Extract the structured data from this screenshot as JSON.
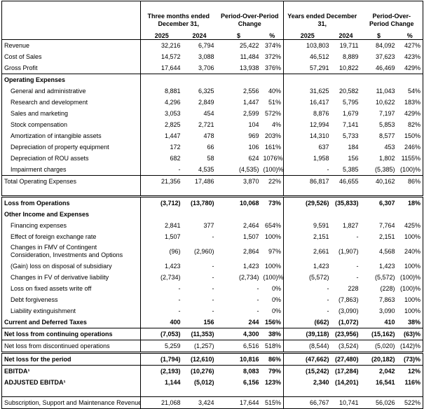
{
  "header": {
    "groups": [
      "Three months ended December 31,",
      "Period-Over-Period Change",
      "Years ended December 31,",
      "Period-Over-Period Change"
    ],
    "columns": [
      "2025",
      "2024",
      "$",
      "%",
      "2025",
      "2024",
      "$",
      "%"
    ]
  },
  "table": {
    "rows": [
      {
        "label": "Revenue",
        "cells": [
          "32,216",
          "6,794",
          "25,422",
          "374%",
          "103,803",
          "19,711",
          "84,092",
          "427%"
        ]
      },
      {
        "label": "Cost of Sales",
        "cells": [
          "14,572",
          "3,088",
          "11,484",
          "372%",
          "46,512",
          "8,889",
          "37,623",
          "423%"
        ]
      },
      {
        "label": "Gross Profit",
        "cells": [
          "17,644",
          "3,706",
          "13,938",
          "376%",
          "57,291",
          "10,822",
          "46,469",
          "429%"
        ]
      },
      {
        "label": "Operating Expenses"
      },
      {
        "label": "General and administrative",
        "cells": [
          "8,881",
          "6,325",
          "2,556",
          "40%",
          "31,625",
          "20,582",
          "11,043",
          "54%"
        ]
      },
      {
        "label": "Research and development",
        "cells": [
          "4,296",
          "2,849",
          "1,447",
          "51%",
          "16,417",
          "5,795",
          "10,622",
          "183%"
        ]
      },
      {
        "label": "Sales and marketing",
        "cells": [
          "3,053",
          "454",
          "2,599",
          "572%",
          "8,876",
          "1,679",
          "7,197",
          "429%"
        ]
      },
      {
        "label": "Stock compensation",
        "cells": [
          "2,825",
          "2,721",
          "104",
          "4%",
          "12,994",
          "7,141",
          "5,853",
          "82%"
        ]
      },
      {
        "label": "Amortization of intangible assets",
        "cells": [
          "1,447",
          "478",
          "969",
          "203%",
          "14,310",
          "5,733",
          "8,577",
          "150%"
        ]
      },
      {
        "label": "Depreciation of property equipment",
        "cells": [
          "172",
          "66",
          "106",
          "161%",
          "637",
          "184",
          "453",
          "246%"
        ]
      },
      {
        "label": "Depreciation of ROU assets",
        "cells": [
          "682",
          "58",
          "624",
          "1076%",
          "1,958",
          "156",
          "1,802",
          "1155%"
        ]
      },
      {
        "label": "Impairment charges",
        "cells": [
          "-",
          "4,535",
          "(4,535)",
          "(100)%",
          "-",
          "5,385",
          "(5,385)",
          "(100)%"
        ]
      },
      {
        "label": "Total Operating Expenses",
        "cells": [
          "21,356",
          "17,486",
          "3,870",
          "22%",
          "86,817",
          "46,655",
          "40,162",
          "86%"
        ]
      },
      {
        "label": "Loss from Operations",
        "cells": [
          "(3,712)",
          "(13,780)",
          "10,068",
          "73%",
          "(29,526)",
          "(35,833)",
          "6,307",
          "18%"
        ]
      },
      {
        "label": "Other Income and Expenses"
      },
      {
        "label": "Financing expenses",
        "cells": [
          "2,841",
          "377",
          "2,464",
          "654%",
          "9,591",
          "1,827",
          "7,764",
          "425%"
        ]
      },
      {
        "label": "Effect of foreign exchange rate",
        "cells": [
          "1,507",
          "-",
          "1,507",
          "100%",
          "2,151",
          "-",
          "2,151",
          "100%"
        ]
      },
      {
        "label": "Changes in FMV of Contingent Consideration, Investments and Options",
        "cells": [
          "(96)",
          "(2,960)",
          "2,864",
          "97%",
          "2,661",
          "(1,907)",
          "4,568",
          "240%"
        ]
      },
      {
        "label": "(Gain) loss on disposal of subsidiary",
        "cells": [
          "1,423",
          "-",
          "1,423",
          "100%",
          "1,423",
          "-",
          "1,423",
          "100%"
        ]
      },
      {
        "label": "Changes in FV of derivative liability",
        "cells": [
          "(2,734)",
          "-",
          "(2,734)",
          "(100)%",
          "(5,572)",
          "-",
          "(5,572)",
          "(100)%"
        ]
      },
      {
        "label": "Loss on fixed assets write off",
        "cells": [
          "-",
          "-",
          "-",
          "0%",
          "-",
          "228",
          "(228)",
          "(100)%"
        ]
      },
      {
        "label": "Debt forgiveness",
        "cells": [
          "-",
          "-",
          "-",
          "0%",
          "-",
          "(7,863)",
          "7,863",
          "100%"
        ]
      },
      {
        "label": "Liability extinguishment",
        "cells": [
          "-",
          "-",
          "-",
          "0%",
          "-",
          "(3,090)",
          "3,090",
          "100%"
        ]
      },
      {
        "label": "Current and Deferred Taxes",
        "cells": [
          "400",
          "156",
          "244",
          "156%",
          "(662)",
          "(1,072)",
          "410",
          "38%"
        ]
      },
      {
        "label": "Net loss from continuing operations",
        "cells": [
          "(7,053)",
          "(11,353)",
          "4,300",
          "38%",
          "(39,118)",
          "(23,956)",
          "(15,162)",
          "(63)%"
        ]
      },
      {
        "label": "Net loss from discontinued operations",
        "cells": [
          "5,259",
          "(1,257)",
          "6,516",
          "518%",
          "(8,544)",
          "(3,524)",
          "(5,020)",
          "(142)%"
        ]
      },
      {
        "label": "Net loss for the period",
        "cells": [
          "(1,794)",
          "(12,610)",
          "10,816",
          "86%",
          "(47,662)",
          "(27,480)",
          "(20,182)",
          "(73)%"
        ]
      },
      {
        "label": "EBITDA¹",
        "cells": [
          "(2,193)",
          "(10,276)",
          "8,083",
          "79%",
          "(15,242)",
          "(17,284)",
          "2,042",
          "12%"
        ]
      },
      {
        "label": "ADJUSTED EBITDA¹",
        "cells": [
          "1,144",
          "(5,012)",
          "6,156",
          "123%",
          "2,340",
          "(14,201)",
          "16,541",
          "116%"
        ]
      },
      {
        "label": "Subscription, Support and Maintenance Revenue",
        "cells": [
          "21,068",
          "3,424",
          "17,644",
          "515%",
          "66,767",
          "10,741",
          "56,026",
          "522%"
        ]
      }
    ]
  }
}
